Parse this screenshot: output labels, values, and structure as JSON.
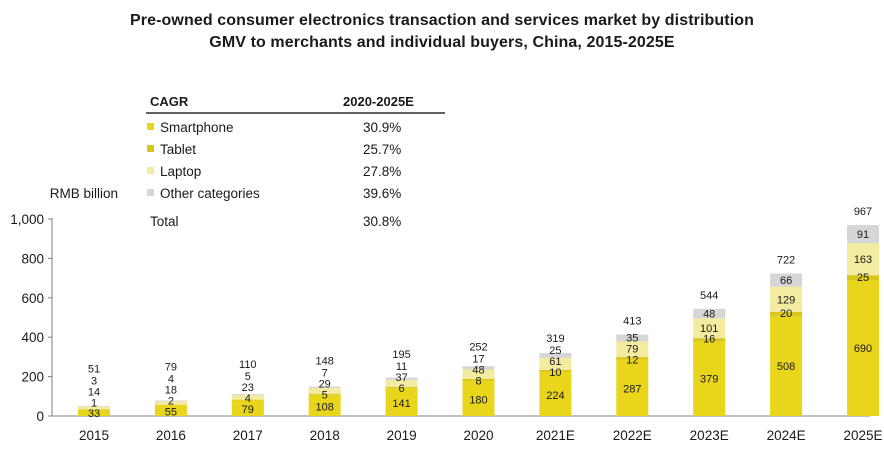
{
  "title_line1": "Pre-owned consumer electronics transaction and services market by distribution",
  "title_line2": "GMV to merchants and individual buyers, China, 2015-2025E",
  "colors": {
    "smartphone": "#E8D51C",
    "tablet": "#D9C61A",
    "laptop": "#F2EBA0",
    "other": "#D6D6D6",
    "axis": "#7f7f7f",
    "text": "#1a1a1a"
  },
  "cagr_table": {
    "header_left": "CAGR",
    "header_right": "2020-2025E",
    "rows": [
      {
        "label": "Smartphone",
        "value": "30.9%",
        "color_key": "smartphone"
      },
      {
        "label": "Tablet",
        "value": "25.7%",
        "color_key": "tablet"
      },
      {
        "label": "Laptop",
        "value": "27.8%",
        "color_key": "laptop"
      },
      {
        "label": "Other categories",
        "value": "39.6%",
        "color_key": "other"
      }
    ],
    "total_label": "Total",
    "total_value": "30.8%"
  },
  "chart_data": {
    "type": "bar",
    "stacked": true,
    "ylabel": "RMB billion",
    "ylim": [
      0,
      1000
    ],
    "yticks": [
      0,
      200,
      400,
      600,
      800,
      1000
    ],
    "ytick_labels": [
      "0",
      "200",
      "400",
      "600",
      "800",
      "1,000"
    ],
    "categories": [
      "2015",
      "2016",
      "2017",
      "2018",
      "2019",
      "2020",
      "2021E",
      "2022E",
      "2023E",
      "2024E",
      "2025E"
    ],
    "series": [
      {
        "name": "Smartphone",
        "color_key": "smartphone",
        "values": [
          33,
          55,
          79,
          108,
          141,
          180,
          224,
          287,
          379,
          508,
          690
        ]
      },
      {
        "name": "Tablet",
        "color_key": "tablet",
        "values": [
          1,
          2,
          4,
          5,
          6,
          8,
          10,
          12,
          16,
          20,
          25
        ]
      },
      {
        "name": "Laptop",
        "color_key": "laptop",
        "values": [
          14,
          18,
          23,
          29,
          37,
          48,
          61,
          79,
          101,
          129,
          163
        ]
      },
      {
        "name": "Other categories",
        "color_key": "other",
        "values": [
          3,
          4,
          5,
          7,
          11,
          17,
          25,
          35,
          48,
          66,
          91
        ]
      }
    ],
    "totals": [
      51,
      79,
      110,
      148,
      195,
      252,
      319,
      413,
      544,
      722,
      967
    ]
  }
}
